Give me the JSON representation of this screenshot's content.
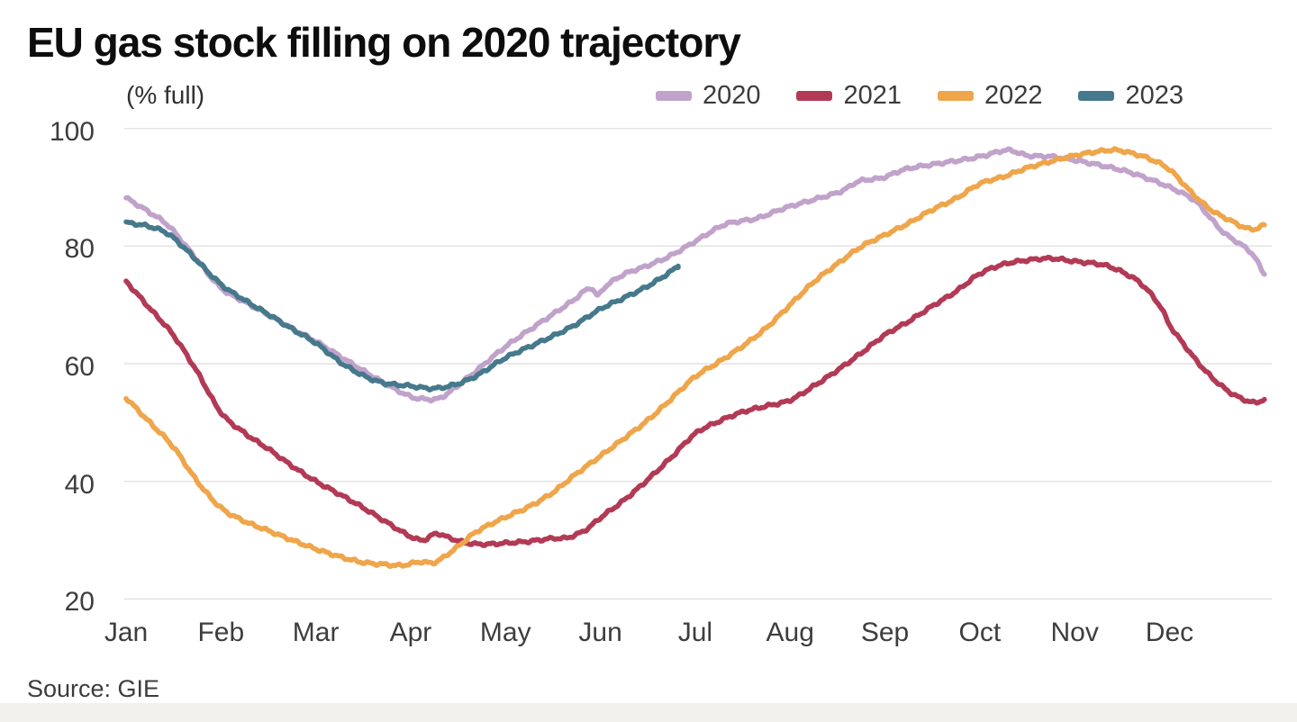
{
  "header": {
    "title": "EU gas stock filling on 2020 trajectory",
    "unit_label": "(% full)"
  },
  "source": {
    "label": "Source: GIE"
  },
  "colors": {
    "grid": "#e3e2e0",
    "title_text": "#0d0d0d",
    "tick_text": "#3d3d3d",
    "footer_band": "#f1f0ed"
  },
  "chart_data": {
    "type": "line",
    "title": "EU gas stock filling on 2020 trajectory",
    "ylabel": "(% full)",
    "ylim": [
      20,
      100
    ],
    "grid": "horizontal",
    "legend_position": "top-right",
    "x_ticks": [
      "Jan",
      "Feb",
      "Mar",
      "Apr",
      "May",
      "Jun",
      "Jul",
      "Aug",
      "Sep",
      "Oct",
      "Nov",
      "Dec"
    ],
    "y_ticks": [
      "100",
      "80",
      "60",
      "40",
      "20"
    ],
    "y_tick_values": [
      100,
      80,
      60,
      40,
      20
    ],
    "x_axis_note": "x values below are months elapsed since Jan 1 (0 = Jan 1, 12 = Dec 31)",
    "series": [
      {
        "name": "2020",
        "color": "#c0a2cb",
        "points": [
          [
            0,
            88.2
          ],
          [
            0.23,
            85.9
          ],
          [
            0.45,
            83.4
          ],
          [
            0.7,
            78.6
          ],
          [
            1,
            72.9
          ],
          [
            1.25,
            70.5
          ],
          [
            1.5,
            68.3
          ],
          [
            1.75,
            66
          ],
          [
            2,
            63.8
          ],
          [
            2.35,
            60.3
          ],
          [
            2.7,
            56.9
          ],
          [
            3,
            54.4
          ],
          [
            3.15,
            54
          ],
          [
            3.3,
            54.1
          ],
          [
            3.5,
            56.3
          ],
          [
            3.7,
            58.9
          ],
          [
            4,
            62.9
          ],
          [
            4.35,
            66.8
          ],
          [
            4.7,
            70.6
          ],
          [
            4.9,
            72.9
          ],
          [
            4.97,
            71.6
          ],
          [
            5.05,
            73.1
          ],
          [
            5.25,
            75.2
          ],
          [
            5.5,
            76.7
          ],
          [
            5.72,
            78.2
          ],
          [
            6,
            80.8
          ],
          [
            6.3,
            83.6
          ],
          [
            6.5,
            84.3
          ],
          [
            6.65,
            84.7
          ],
          [
            6.93,
            86.4
          ],
          [
            7.25,
            87.9
          ],
          [
            7.55,
            89.4
          ],
          [
            7.72,
            91
          ],
          [
            7.97,
            91.6
          ],
          [
            8.2,
            93
          ],
          [
            8.55,
            94
          ],
          [
            8.87,
            94.8
          ],
          [
            9.05,
            95.4
          ],
          [
            9.3,
            96.3
          ],
          [
            9.5,
            95.4
          ],
          [
            9.77,
            95.2
          ],
          [
            10.1,
            94.3
          ],
          [
            10.5,
            92.9
          ],
          [
            10.7,
            91.9
          ],
          [
            11,
            90
          ],
          [
            11.27,
            87.7
          ],
          [
            11.42,
            85
          ],
          [
            11.57,
            82.3
          ],
          [
            11.72,
            80.6
          ],
          [
            11.87,
            78.7
          ],
          [
            12,
            75.2
          ]
        ]
      },
      {
        "name": "2021",
        "color": "#b23a55",
        "points": [
          [
            0,
            74
          ],
          [
            0.25,
            69.4
          ],
          [
            0.5,
            64.8
          ],
          [
            0.75,
            58.6
          ],
          [
            1,
            51.7
          ],
          [
            1.25,
            48.2
          ],
          [
            1.5,
            45.5
          ],
          [
            1.75,
            42.6
          ],
          [
            2,
            40
          ],
          [
            2.25,
            37.8
          ],
          [
            2.5,
            35.5
          ],
          [
            2.75,
            33
          ],
          [
            3,
            30.6
          ],
          [
            3.13,
            30
          ],
          [
            3.27,
            31.1
          ],
          [
            3.42,
            30.3
          ],
          [
            3.6,
            29.5
          ],
          [
            3.78,
            29.3
          ],
          [
            4,
            29.5
          ],
          [
            4.25,
            29.8
          ],
          [
            4.5,
            30.3
          ],
          [
            4.65,
            30.4
          ],
          [
            4.85,
            31.8
          ],
          [
            5,
            33.8
          ],
          [
            5.25,
            36.8
          ],
          [
            5.5,
            40.3
          ],
          [
            5.75,
            44.1
          ],
          [
            6,
            48.1
          ],
          [
            6.25,
            50.2
          ],
          [
            6.5,
            51.8
          ],
          [
            6.75,
            52.8
          ],
          [
            7,
            53.8
          ],
          [
            7.25,
            56.2
          ],
          [
            7.5,
            58.9
          ],
          [
            7.75,
            61.8
          ],
          [
            8,
            64.9
          ],
          [
            8.25,
            67.2
          ],
          [
            8.5,
            69.8
          ],
          [
            8.75,
            72.3
          ],
          [
            9,
            75.3
          ],
          [
            9.25,
            76.9
          ],
          [
            9.5,
            77.6
          ],
          [
            9.75,
            77.9
          ],
          [
            10,
            77.4
          ],
          [
            10.3,
            76.8
          ],
          [
            10.5,
            75.6
          ],
          [
            10.7,
            73.6
          ],
          [
            10.9,
            69.8
          ],
          [
            11,
            66.6
          ],
          [
            11.15,
            63.3
          ],
          [
            11.3,
            60.2
          ],
          [
            11.47,
            57.3
          ],
          [
            11.65,
            55
          ],
          [
            11.8,
            53.8
          ],
          [
            11.9,
            53.4
          ],
          [
            12,
            53.9
          ]
        ]
      },
      {
        "name": "2022",
        "color": "#efa54a",
        "points": [
          [
            0,
            54.2
          ],
          [
            0.25,
            50
          ],
          [
            0.5,
            45.8
          ],
          [
            0.75,
            40
          ],
          [
            1,
            35.5
          ],
          [
            1.25,
            33.2
          ],
          [
            1.5,
            31.6
          ],
          [
            1.75,
            30
          ],
          [
            2,
            28.5
          ],
          [
            2.25,
            27.2
          ],
          [
            2.5,
            26.2
          ],
          [
            2.7,
            25.9
          ],
          [
            2.9,
            25.7
          ],
          [
            3.1,
            26.3
          ],
          [
            3.25,
            26.2
          ],
          [
            3.45,
            28.3
          ],
          [
            3.55,
            29.6
          ],
          [
            3.7,
            31.5
          ],
          [
            4,
            33.9
          ],
          [
            4.25,
            35.7
          ],
          [
            4.5,
            38.1
          ],
          [
            4.7,
            40.7
          ],
          [
            5,
            44.3
          ],
          [
            5.25,
            47.3
          ],
          [
            5.5,
            50.4
          ],
          [
            5.72,
            53.6
          ],
          [
            6,
            57.8
          ],
          [
            6.25,
            60.3
          ],
          [
            6.5,
            63
          ],
          [
            6.75,
            66.1
          ],
          [
            7,
            70
          ],
          [
            7.25,
            73.9
          ],
          [
            7.5,
            77
          ],
          [
            7.75,
            79.9
          ],
          [
            8,
            81.9
          ],
          [
            8.25,
            83.9
          ],
          [
            8.5,
            86.2
          ],
          [
            8.75,
            88.1
          ],
          [
            9,
            90.6
          ],
          [
            9.25,
            91.8
          ],
          [
            9.5,
            93.3
          ],
          [
            9.75,
            94.4
          ],
          [
            10,
            95.4
          ],
          [
            10.3,
            96.2
          ],
          [
            10.45,
            96.3
          ],
          [
            10.6,
            95.8
          ],
          [
            10.78,
            94.9
          ],
          [
            11,
            93
          ],
          [
            11.25,
            88.8
          ],
          [
            11.45,
            86
          ],
          [
            11.6,
            84.7
          ],
          [
            11.8,
            83.1
          ],
          [
            11.9,
            82.9
          ],
          [
            12,
            83.6
          ]
        ]
      },
      {
        "name": "2023",
        "color": "#45798b",
        "points": [
          [
            0,
            84
          ],
          [
            0.25,
            83.3
          ],
          [
            0.45,
            82
          ],
          [
            0.7,
            78.3
          ],
          [
            1,
            73.5
          ],
          [
            1.25,
            70.8
          ],
          [
            1.5,
            68.4
          ],
          [
            1.75,
            65.9
          ],
          [
            2,
            63.5
          ],
          [
            2.3,
            59.8
          ],
          [
            2.65,
            57
          ],
          [
            3,
            56.2
          ],
          [
            3.25,
            55.8
          ],
          [
            3.5,
            56.6
          ],
          [
            3.7,
            58
          ],
          [
            4,
            61
          ],
          [
            4.35,
            63.6
          ],
          [
            4.7,
            66.3
          ],
          [
            5,
            69.3
          ],
          [
            5.25,
            71.2
          ],
          [
            5.5,
            73.2
          ],
          [
            5.7,
            75.2
          ],
          [
            5.82,
            76.6
          ]
        ]
      }
    ]
  }
}
